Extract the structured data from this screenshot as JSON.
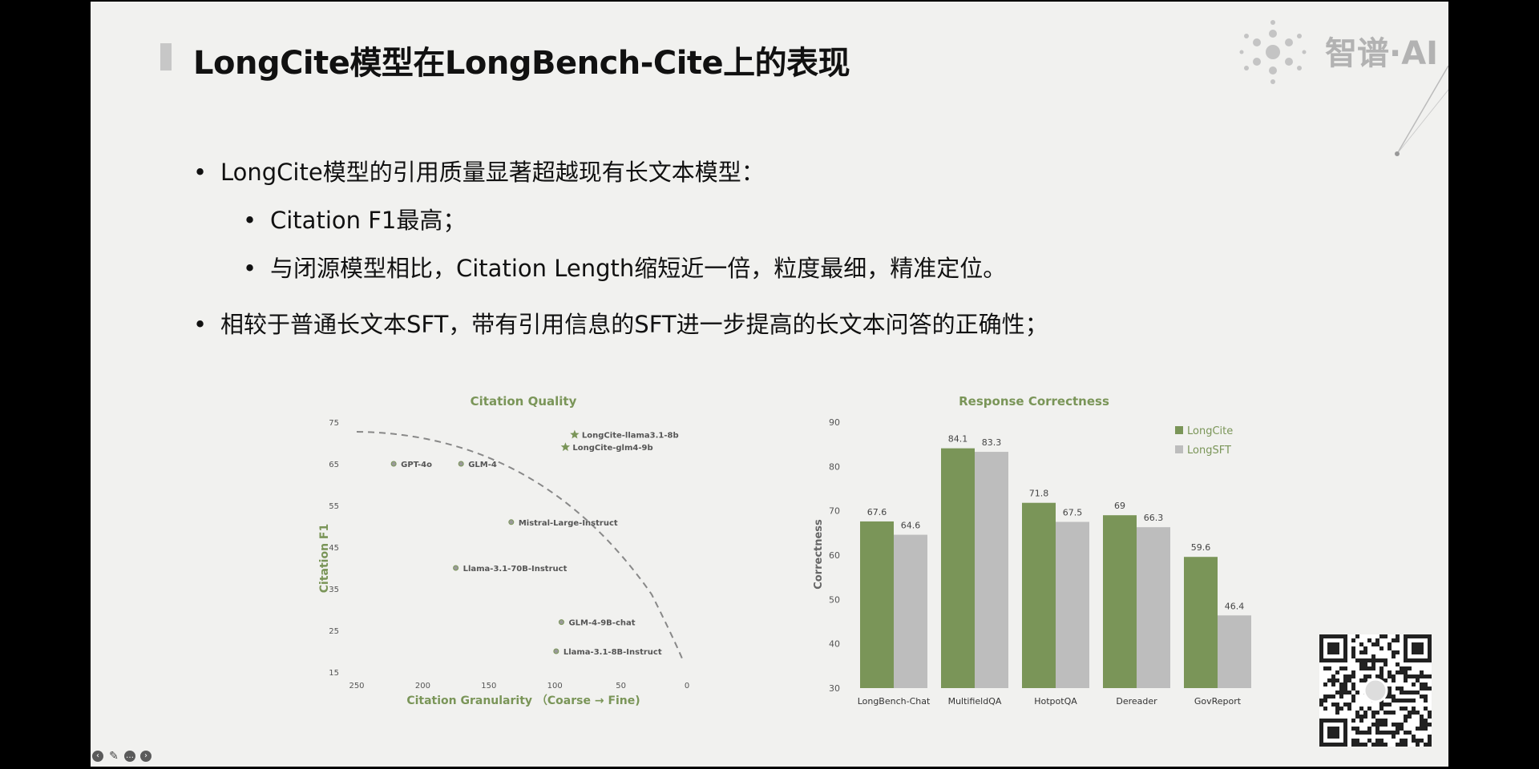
{
  "slide": {
    "title": "LongCite模型在LongBench-Cite上的表现",
    "logo_text": "智谱·AI",
    "bullets": [
      {
        "level": 1,
        "text": "LongCite模型的引用质量显著超越现有长文本模型："
      },
      {
        "level": 2,
        "text": "Citation F1最高；"
      },
      {
        "level": 2,
        "text": "与闭源模型相比，Citation Length缩短近一倍，粒度最细，精准定位。"
      },
      {
        "level": 1,
        "text": "相较于普通长文本SFT，带有引用信息的SFT进一步提高的长文本问答的正确性；"
      }
    ]
  },
  "colors": {
    "green": "#7a9558",
    "gray": "#bdbdbd",
    "axis_text": "#555555",
    "chart_title": "#7a9558"
  },
  "chart_data": [
    {
      "type": "scatter",
      "title": "Citation Quality",
      "xlabel": "Citation Granularity （Coarse → Fine)",
      "ylabel": "Citation F1",
      "xlim": [
        250,
        0
      ],
      "ylim": [
        15,
        75
      ],
      "x_ticks": [
        250,
        200,
        150,
        100,
        50,
        0
      ],
      "y_ticks": [
        15,
        25,
        35,
        45,
        55,
        65,
        75
      ],
      "points": [
        {
          "label": "LongCite-llama3.1-8b",
          "x": 85,
          "y": 72,
          "marker": "star"
        },
        {
          "label": "LongCite-glm4-9b",
          "x": 92,
          "y": 69,
          "marker": "star"
        },
        {
          "label": "GPT-4o",
          "x": 222,
          "y": 65,
          "marker": "circle"
        },
        {
          "label": "GLM-4",
          "x": 171,
          "y": 65,
          "marker": "circle"
        },
        {
          "label": "Mistral-Large-Instruct",
          "x": 133,
          "y": 51,
          "marker": "circle"
        },
        {
          "label": "Llama-3.1-70B-Instruct",
          "x": 175,
          "y": 40,
          "marker": "circle"
        },
        {
          "label": "GLM-4-9B-chat",
          "x": 95,
          "y": 27,
          "marker": "circle"
        },
        {
          "label": "Llama-3.1-8B-Instruct",
          "x": 99,
          "y": 20,
          "marker": "circle"
        }
      ]
    },
    {
      "type": "bar",
      "title": "Response Correctness",
      "ylabel": "Correctness",
      "ylim": [
        30,
        90
      ],
      "y_ticks": [
        30,
        40,
        50,
        60,
        70,
        80,
        90
      ],
      "categories": [
        "LongBench-Chat",
        "MultifieldQA",
        "HotpotQA",
        "Dereader",
        "GovReport"
      ],
      "series": [
        {
          "name": "LongCite",
          "values": [
            67.6,
            84.1,
            71.8,
            69,
            59.6
          ]
        },
        {
          "name": "LongSFT",
          "values": [
            64.6,
            83.3,
            67.5,
            66.3,
            46.4
          ]
        }
      ],
      "legend": "top-right"
    }
  ]
}
